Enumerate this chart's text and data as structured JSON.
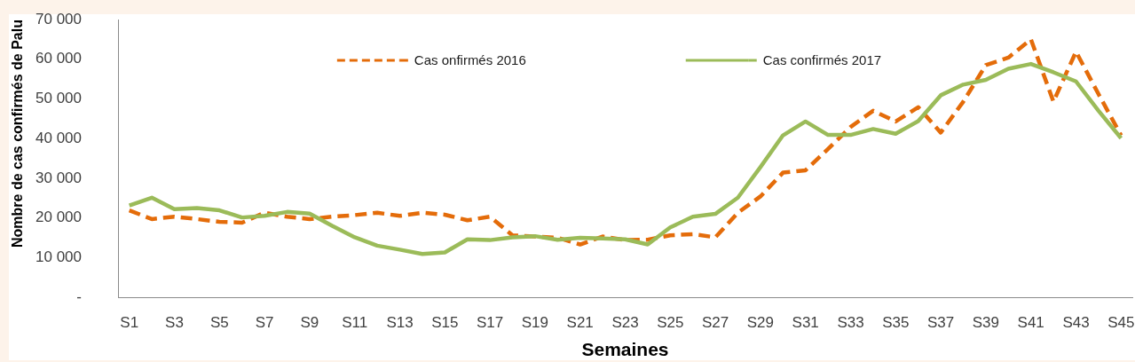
{
  "chart_data": {
    "type": "line",
    "xlabel": "Semaines",
    "ylabel": "Nombre de cas confirmés de Palu",
    "categories": [
      "S1",
      null,
      "S3",
      null,
      "S5",
      null,
      "S7",
      null,
      "S9",
      null,
      "S11",
      null,
      "S13",
      null,
      "S15",
      null,
      "S17",
      null,
      "S19",
      null,
      "S21",
      null,
      "S23",
      null,
      "S25",
      null,
      "S27",
      null,
      "S29",
      null,
      "S31",
      null,
      "S33",
      null,
      "S35",
      null,
      "S37",
      null,
      "S39",
      null,
      "S41",
      null,
      "S43",
      null,
      "S45"
    ],
    "series": [
      {
        "name": "Cas onfirmés 2016",
        "color": "#e46c0a",
        "line_style": "dashed",
        "values": [
          21900,
          19700,
          20300,
          19700,
          19000,
          18800,
          21300,
          20300,
          19700,
          20300,
          20700,
          21300,
          20500,
          21300,
          20800,
          19400,
          20300,
          15600,
          15300,
          15000,
          13300,
          15300,
          14400,
          14500,
          15600,
          15900,
          15100,
          21300,
          25400,
          31400,
          32000,
          37400,
          42900,
          47000,
          44300,
          47900,
          41500,
          49300,
          58500,
          60400,
          65000,
          49300,
          61900,
          51200,
          40800
        ]
      },
      {
        "name": "Cas confirmés 2017",
        "color": "#9bbb59",
        "line_style": "solid",
        "values": [
          23100,
          25100,
          22200,
          22500,
          21900,
          20100,
          20500,
          21500,
          21100,
          18000,
          15100,
          13000,
          12000,
          10900,
          11300,
          14600,
          14400,
          15100,
          15400,
          14500,
          15000,
          14800,
          14600,
          13300,
          17600,
          20300,
          21000,
          25100,
          32800,
          40800,
          44300,
          40900,
          40900,
          42400,
          41200,
          44400,
          50900,
          53600,
          54800,
          57600,
          58800,
          56700,
          54400,
          47000,
          40100
        ]
      }
    ],
    "ylim": [
      0,
      70000
    ],
    "yticks": [
      {
        "value": 0,
        "label": "-"
      },
      {
        "value": 10000,
        "label": "10 000"
      },
      {
        "value": 20000,
        "label": "20 000"
      },
      {
        "value": 30000,
        "label": "30 000"
      },
      {
        "value": 40000,
        "label": "40 000"
      },
      {
        "value": 50000,
        "label": "50 000"
      },
      {
        "value": 60000,
        "label": "60 000"
      },
      {
        "value": 70000,
        "label": "70 000"
      }
    ],
    "legend": "top",
    "marker": "none"
  }
}
